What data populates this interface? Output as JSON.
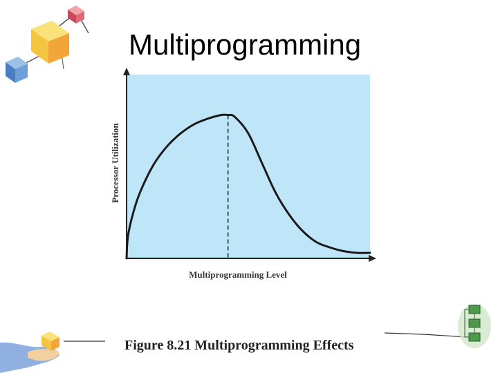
{
  "slide": {
    "title": "Multiprogramming",
    "caption": "Figure 8.21 Multiprogramming Effects"
  },
  "chart_data": {
    "type": "line",
    "title": "",
    "xlabel": "Multiprogramming Level",
    "ylabel": "Processor Utilization",
    "grid": false,
    "legend": "none",
    "background_color": "#bfe5f8",
    "curve_color": "#1a1a1a",
    "peak_marker": "dashed vertical line at maximum utilization",
    "series": [
      {
        "name": "",
        "x": [
          0,
          0.1,
          0.5,
          1,
          2,
          3,
          4,
          5,
          6,
          7,
          7.5,
          8,
          9,
          10,
          11,
          12,
          13,
          14,
          15,
          16,
          17,
          18
        ],
        "y": [
          0,
          0.12,
          0.25,
          0.36,
          0.51,
          0.61,
          0.68,
          0.73,
          0.76,
          0.78,
          0.78,
          0.77,
          0.68,
          0.52,
          0.36,
          0.24,
          0.15,
          0.09,
          0.06,
          0.04,
          0.03,
          0.03
        ]
      }
    ],
    "peak_x": 7.5,
    "xlim": [
      0,
      18
    ],
    "ylim": [
      0,
      1
    ]
  },
  "decorations": {
    "top_left": "hanging-cubes-icon",
    "bottom_left": "hand-holding-cube-icon",
    "bottom_right": "green-flowchart-icon"
  }
}
